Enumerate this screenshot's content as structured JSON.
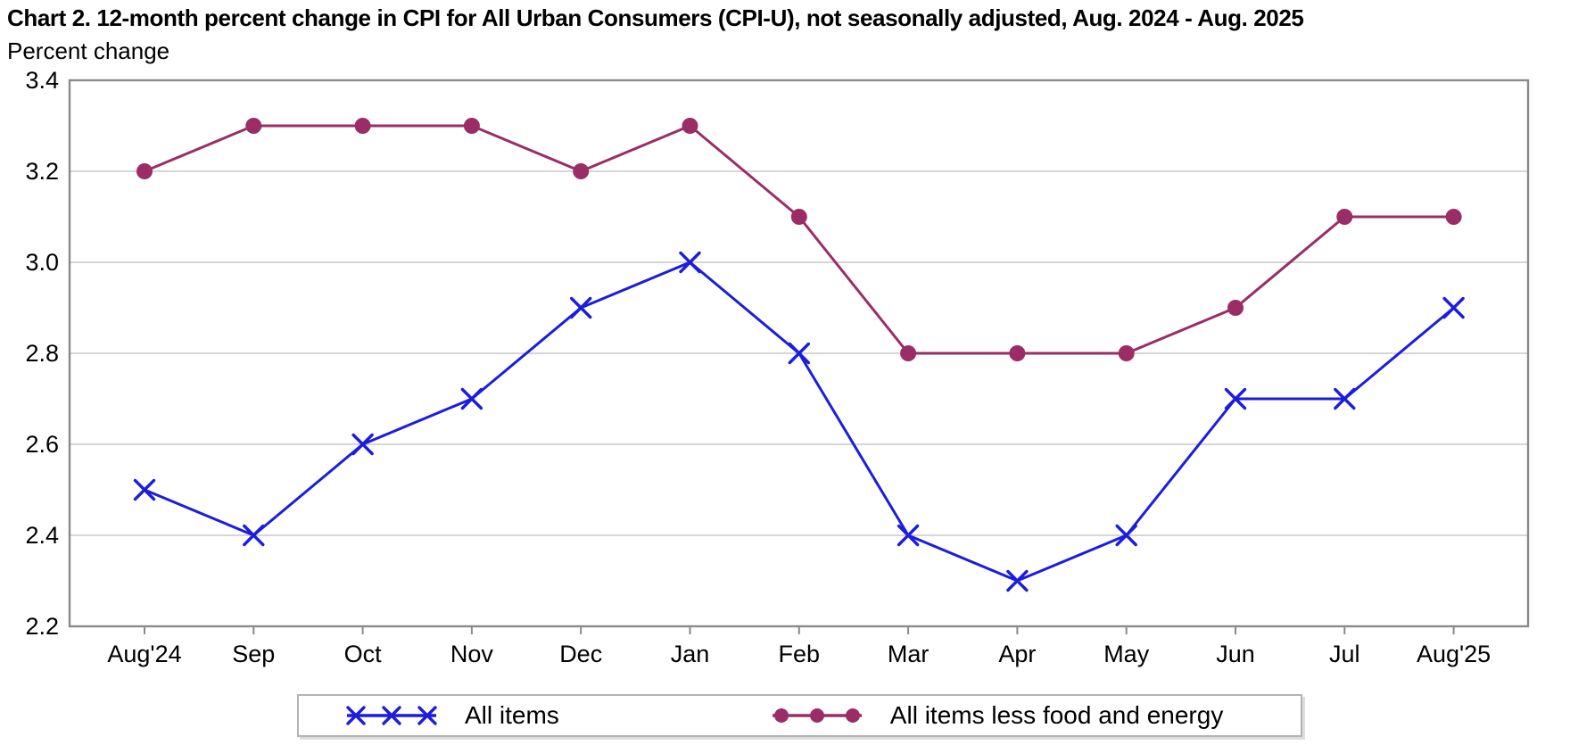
{
  "page": {
    "title": "Chart 2. 12-month percent change in CPI for All Urban Consumers (CPI-U), not seasonally adjusted, Aug. 2024 - Aug. 2025",
    "subtitle": "Percent change"
  },
  "chart_data": {
    "type": "line",
    "title": "Chart 2. 12-month percent change in CPI for All Urban Consumers (CPI-U), not seasonally adjusted, Aug. 2024 - Aug. 2025",
    "ylabel": "Percent change",
    "xlabel": "",
    "categories": [
      "Aug'24",
      "Sep",
      "Oct",
      "Nov",
      "Dec",
      "Jan",
      "Feb",
      "Mar",
      "Apr",
      "May",
      "Jun",
      "Jul",
      "Aug'25"
    ],
    "ylim": [
      2.2,
      3.4
    ],
    "yticks": [
      2.2,
      2.4,
      2.6,
      2.8,
      3.0,
      3.2,
      3.4
    ],
    "grid": true,
    "legend_position": "bottom",
    "series": [
      {
        "name": "All items",
        "marker": "x",
        "color": "#1c1cdf",
        "values": [
          2.5,
          2.4,
          2.6,
          2.7,
          2.9,
          3.0,
          2.8,
          2.4,
          2.3,
          2.4,
          2.7,
          2.7,
          2.9
        ]
      },
      {
        "name": "All items less food and energy",
        "marker": "circle",
        "color": "#9b2d66",
        "values": [
          3.2,
          3.3,
          3.3,
          3.3,
          3.2,
          3.3,
          3.1,
          2.8,
          2.8,
          2.8,
          2.9,
          3.1,
          3.1
        ]
      }
    ],
    "style": {
      "grid_color": "#c8c8c8",
      "border_color": "#8a8a8a",
      "tick_color": "#8a8a8a",
      "text_color": "#000000"
    }
  }
}
